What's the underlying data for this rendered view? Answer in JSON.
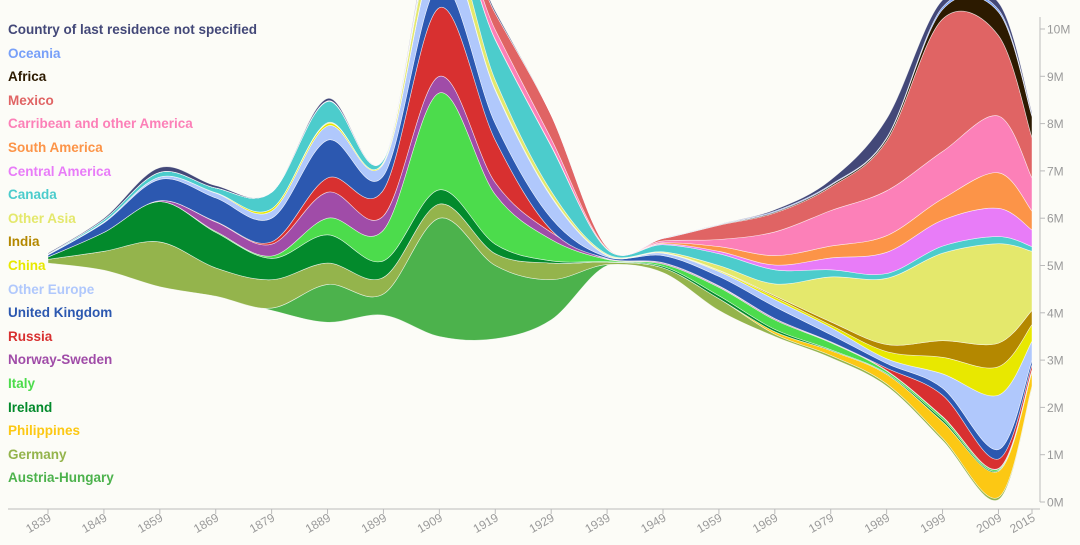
{
  "chart_data": {
    "type": "area",
    "subtype": "streamgraph",
    "title": "",
    "xlabel": "",
    "ylabel": "",
    "x": [
      1839,
      1849,
      1859,
      1869,
      1879,
      1889,
      1899,
      1909,
      1919,
      1929,
      1939,
      1949,
      1959,
      1969,
      1979,
      1989,
      1999,
      2009,
      2015
    ],
    "x_tick_labels": [
      "1839",
      "1849",
      "1859",
      "1869",
      "1879",
      "1889",
      "1899",
      "1909",
      "1919",
      "1929",
      "1939",
      "1949",
      "1959",
      "1969",
      "1979",
      "1989",
      "1999",
      "2009",
      "2015"
    ],
    "y_tick_labels": [
      "0M",
      "1M",
      "2M",
      "3M",
      "4M",
      "5M",
      "6M",
      "7M",
      "8M",
      "9M",
      "10M"
    ],
    "ylim": [
      0,
      10
    ],
    "y_unit": "millions",
    "baseline": [
      5.05,
      4.9,
      4.55,
      4.35,
      4.05,
      3.8,
      3.95,
      3.5,
      3.45,
      3.85,
      5.0,
      4.85,
      4.05,
      3.5,
      3.05,
      2.45,
      1.3,
      0.05,
      2.4
    ],
    "series": [
      {
        "name": "Austria-Hungary",
        "color": "#4cb24c",
        "values": [
          0,
          0,
          0,
          0,
          0.05,
          0.8,
          0.45,
          2.5,
          1.55,
          0.85,
          0.02,
          0,
          0,
          0,
          0,
          0,
          0,
          0,
          0
        ]
      },
      {
        "name": "Germany",
        "color": "#94b44c",
        "values": [
          0.08,
          0.4,
          0.95,
          0.6,
          0.6,
          0.45,
          0.35,
          0.3,
          0.25,
          0.35,
          0.05,
          0.1,
          0.25,
          0.05,
          0.05,
          0.05,
          0.05,
          0.05,
          0.05
        ]
      },
      {
        "name": "Philippines",
        "color": "#fcc814",
        "values": [
          0,
          0,
          0,
          0,
          0,
          0,
          0,
          0,
          0,
          0,
          0,
          0,
          0,
          0.05,
          0.1,
          0.2,
          0.35,
          0.55,
          0.3
        ]
      },
      {
        "name": "Ireland",
        "color": "#038a2c",
        "values": [
          0.05,
          0.4,
          0.85,
          0.75,
          0.45,
          0.6,
          0.35,
          0.3,
          0.2,
          0.05,
          0.01,
          0.03,
          0.06,
          0.05,
          0.02,
          0.02,
          0.05,
          0.02,
          0.02
        ]
      },
      {
        "name": "Italy",
        "color": "#4cdc4c",
        "values": [
          0,
          0,
          0,
          0.02,
          0.05,
          0.35,
          0.65,
          2.05,
          1.05,
          0.45,
          0.05,
          0.05,
          0.18,
          0.2,
          0.15,
          0.05,
          0.05,
          0.03,
          0.02
        ]
      },
      {
        "name": "Norway-Sweden",
        "color": "#a04ca8",
        "values": [
          0,
          0,
          0.02,
          0.2,
          0.25,
          0.55,
          0.3,
          0.35,
          0.25,
          0.15,
          0.01,
          0.02,
          0.02,
          0.02,
          0.01,
          0.01,
          0.01,
          0.01,
          0.01
        ]
      },
      {
        "name": "Russia",
        "color": "#d83030",
        "values": [
          0,
          0,
          0,
          0.01,
          0.05,
          0.3,
          0.55,
          1.45,
          0.9,
          0.05,
          0.01,
          0.01,
          0.01,
          0.01,
          0.01,
          0.05,
          0.45,
          0.2,
          0.1
        ]
      },
      {
        "name": "United Kingdom",
        "color": "#2c58b0",
        "values": [
          0.04,
          0.2,
          0.45,
          0.5,
          0.5,
          0.8,
          0.3,
          0.5,
          0.35,
          0.25,
          0.03,
          0.15,
          0.2,
          0.25,
          0.15,
          0.1,
          0.15,
          0.2,
          0.1
        ]
      },
      {
        "name": "Other Europe",
        "color": "#b0c8fc",
        "values": [
          0.01,
          0.02,
          0.05,
          0.1,
          0.15,
          0.3,
          0.25,
          0.75,
          0.7,
          0.45,
          0.03,
          0.05,
          0.1,
          0.15,
          0.15,
          0.1,
          0.3,
          1.15,
          0.4
        ]
      },
      {
        "name": "China",
        "color": "#e8e800",
        "values": [
          0,
          0,
          0,
          0.01,
          0.05,
          0.05,
          0.02,
          0.02,
          0.02,
          0.02,
          0.01,
          0.01,
          0.02,
          0.05,
          0.05,
          0.15,
          0.35,
          0.6,
          0.35
        ]
      },
      {
        "name": "India",
        "color": "#b48800",
        "values": [
          0,
          0,
          0,
          0,
          0,
          0,
          0,
          0,
          0,
          0,
          0,
          0,
          0.01,
          0.03,
          0.07,
          0.15,
          0.35,
          0.5,
          0.3
        ]
      },
      {
        "name": "Other Asia",
        "color": "#e4e86c",
        "values": [
          0,
          0,
          0,
          0,
          0,
          0.02,
          0.02,
          0.4,
          0.2,
          0.1,
          0.02,
          0.02,
          0.1,
          0.25,
          0.95,
          1.4,
          1.85,
          2.1,
          1.25
        ]
      },
      {
        "name": "Canada",
        "color": "#4ccccc",
        "values": [
          0.01,
          0.05,
          0.1,
          0.1,
          0.35,
          0.45,
          0.05,
          0.2,
          0.85,
          0.95,
          0.1,
          0.15,
          0.25,
          0.3,
          0.15,
          0.1,
          0.15,
          0.15,
          0.1
        ]
      },
      {
        "name": "Central America",
        "color": "#e87cf8",
        "values": [
          0,
          0,
          0,
          0,
          0,
          0,
          0,
          0,
          0,
          0,
          0,
          0.02,
          0.05,
          0.1,
          0.25,
          0.45,
          0.55,
          0.6,
          0.35
        ]
      },
      {
        "name": "South America",
        "color": "#fc9448",
        "values": [
          0,
          0,
          0,
          0,
          0,
          0,
          0,
          0,
          0.01,
          0.01,
          0.01,
          0.02,
          0.1,
          0.2,
          0.25,
          0.35,
          0.45,
          0.75,
          0.4
        ]
      },
      {
        "name": "Carribean and other America",
        "color": "#fc80b8",
        "values": [
          0,
          0,
          0,
          0,
          0,
          0.01,
          0.02,
          0.1,
          0.2,
          0.15,
          0.01,
          0.04,
          0.15,
          0.5,
          0.75,
          0.95,
          1.0,
          1.2,
          0.7
        ]
      },
      {
        "name": "Mexico",
        "color": "#e06464",
        "values": [
          0,
          0,
          0,
          0,
          0,
          0,
          0,
          0.05,
          0.35,
          0.5,
          0.03,
          0.05,
          0.3,
          0.4,
          0.5,
          1.05,
          2.8,
          1.7,
          0.85
        ]
      },
      {
        "name": "Africa",
        "color": "#2c1a00",
        "values": [
          0,
          0,
          0,
          0,
          0,
          0,
          0,
          0,
          0,
          0,
          0,
          0,
          0.01,
          0.02,
          0.03,
          0.05,
          0.2,
          0.5,
          0.45
        ]
      },
      {
        "name": "Oceania",
        "color": "#78a0f8",
        "values": [
          0,
          0,
          0,
          0,
          0,
          0,
          0,
          0,
          0,
          0,
          0,
          0.01,
          0.01,
          0.02,
          0.02,
          0.02,
          0.05,
          0.05,
          0.04
        ]
      },
      {
        "name": "Country of last residence not specified",
        "color": "#434878",
        "values": [
          0.02,
          0.03,
          0.1,
          0.05,
          0,
          0.05,
          0,
          0.1,
          0.05,
          0,
          0,
          0,
          0,
          0.03,
          0.1,
          0.4,
          0.15,
          0.15,
          0.05
        ]
      }
    ],
    "legend_position": "top-left",
    "axis_color": "#bbbbbb",
    "label_color": "#9a9a9a",
    "background": "#fcfcf7"
  }
}
